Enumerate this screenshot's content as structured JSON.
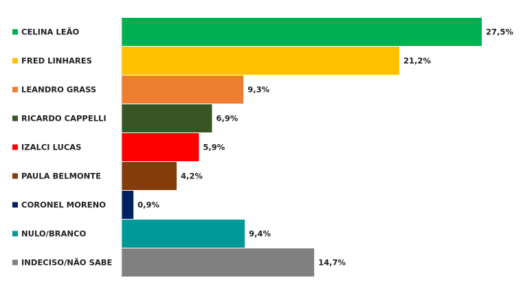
{
  "chart_data": {
    "type": "bar",
    "orientation": "horizontal",
    "categories": [
      "CELINA LEÃO",
      "FRED LINHARES",
      "LEANDRO GRASS",
      "RICARDO CAPPELLI",
      "IZALCI LUCAS",
      "PAULA BELMONTE",
      "CORONEL MORENO",
      "NULO/BRANCO",
      "INDECISO/NÃO SABE"
    ],
    "values": [
      27.5,
      21.2,
      9.3,
      6.9,
      5.9,
      4.2,
      0.9,
      9.4,
      14.7
    ],
    "value_labels": [
      "27,5%",
      "21,2%",
      "9,3%",
      "6,9%",
      "5,9%",
      "4,2%",
      "0,9%",
      "9,4%",
      "14,7%"
    ],
    "colors": [
      "#00b050",
      "#ffc000",
      "#ed7d31",
      "#375623",
      "#ff0000",
      "#843c0c",
      "#002060",
      "#009999",
      "#808080"
    ],
    "unit": "%",
    "xlim": [
      0,
      27.5
    ],
    "grid": false,
    "legend": "left"
  }
}
